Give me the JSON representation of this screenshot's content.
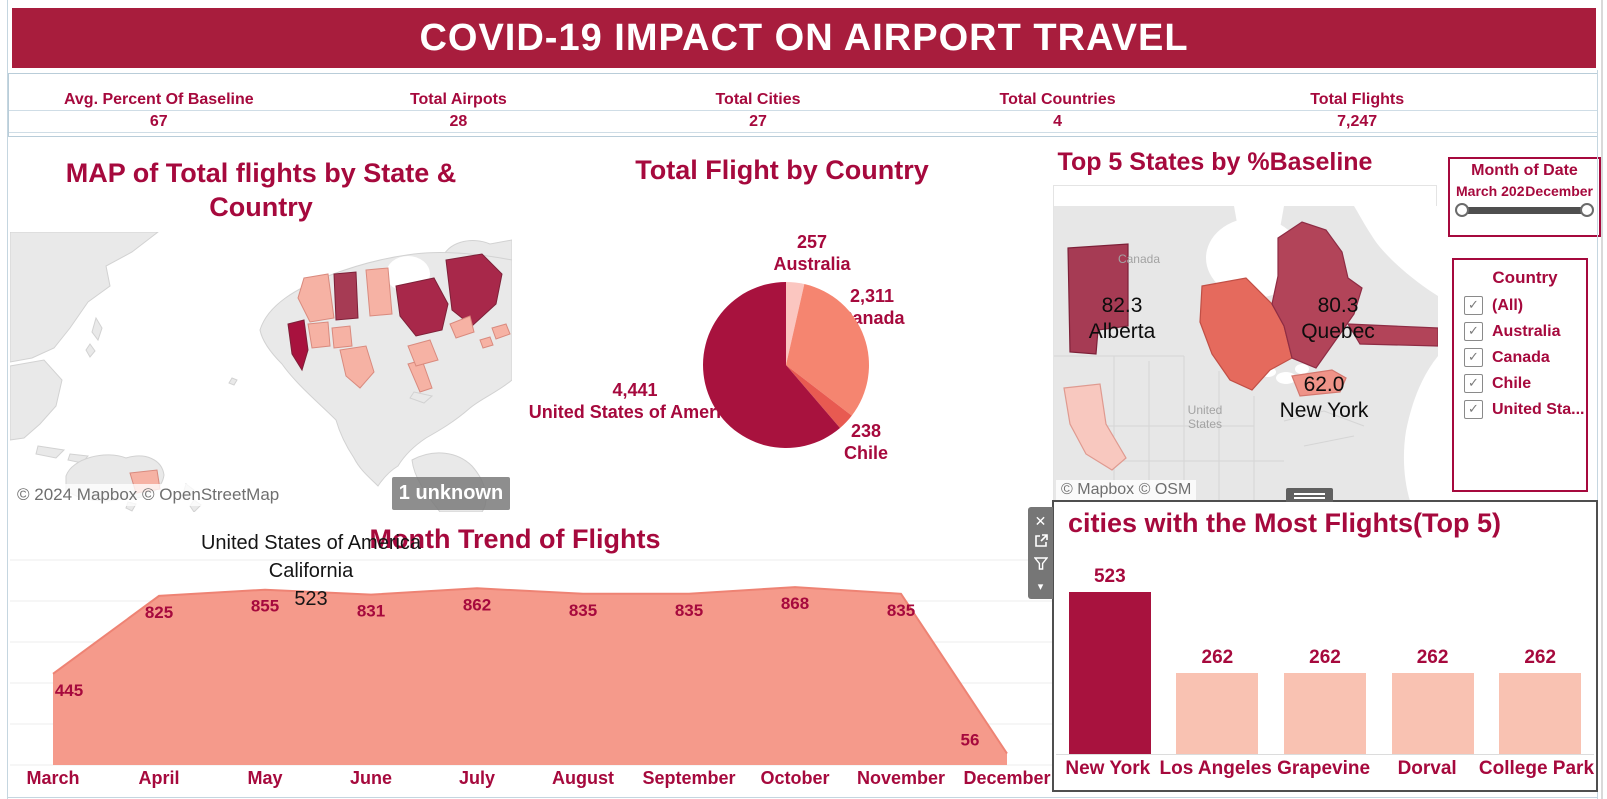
{
  "banner": {
    "title": "COVID-19 IMPACT ON AIRPORT TRAVEL",
    "bg_color": "#a81d3d"
  },
  "kpis": [
    {
      "label": "Avg. Percent Of Baseline",
      "value": "67"
    },
    {
      "label": "Total Airpots",
      "value": "28"
    },
    {
      "label": "Total Cities",
      "value": "27"
    },
    {
      "label": "Total Countries",
      "value": "4"
    },
    {
      "label": "Total Flights",
      "value": "7,247"
    }
  ],
  "left_map": {
    "title": "MAP of Total flights by State & Country",
    "annotation": [
      "United States of America",
      "California",
      "523"
    ],
    "attribution": "© 2024 Mapbox © OpenStreetMap",
    "badge": "1 unknown"
  },
  "top5_map": {
    "title": "Top 5 States by %Baseline",
    "labels": [
      {
        "value": "82.3",
        "name": "Alberta"
      },
      {
        "value": "80.3",
        "name": "Quebec"
      },
      {
        "value": "62.0",
        "name": "New York"
      }
    ],
    "basemap_labels": {
      "canada": "Canada",
      "us_line1": "United",
      "us_line2": "States"
    },
    "attribution": "© Mapbox © OSM"
  },
  "month_filter": {
    "title": "Month of Date",
    "start_label": "March 202",
    "end_label": "December"
  },
  "country_filter": {
    "title": "Country",
    "check_glyph": "✓",
    "options": [
      {
        "label": "(All)",
        "checked": true
      },
      {
        "label": "Australia",
        "checked": true
      },
      {
        "label": "Canada",
        "checked": true
      },
      {
        "label": "Chile",
        "checked": true
      },
      {
        "label": "United Sta...",
        "checked": true
      }
    ]
  },
  "panel_toolbar": {
    "close_glyph": "✕",
    "caret_glyph": "▾"
  },
  "colors": {
    "accent_crimson": "#a6093d",
    "banner": "#a81d3d",
    "dark_slice": "#a8123e",
    "canada_salmon": "#f58570",
    "australia_pink": "#fbc6c0",
    "chile_red": "#e85a51",
    "area_fill": "#f59a8b",
    "area_stroke": "#ee8374",
    "light_bar": "#f9c2b2",
    "gridline": "#ececec",
    "map_land": "#e9e9e9"
  },
  "chart_data": [
    {
      "type": "pie",
      "title": "Total Flight by Country",
      "slices": [
        {
          "name": "Australia",
          "value": 257,
          "label": "257",
          "color": "#fbc6c0"
        },
        {
          "name": "Canada",
          "value": 2311,
          "label": "2,311",
          "color": "#f58570"
        },
        {
          "name": "Chile",
          "value": 238,
          "label": "238",
          "color": "#e85a51"
        },
        {
          "name": "United States of America",
          "value": 4441,
          "label": "4,441",
          "color": "#a8123e"
        }
      ],
      "start_angle": "12 o'clock",
      "direction": "clockwise",
      "legend_position": "data labels around pie"
    },
    {
      "type": "area",
      "title": "Month Trend of Flights",
      "categories": [
        "March",
        "April",
        "May",
        "June",
        "July",
        "August",
        "September",
        "October",
        "November",
        "December"
      ],
      "values": [
        445,
        825,
        855,
        831,
        862,
        835,
        835,
        868,
        835,
        56
      ],
      "value_labels": [
        "445",
        "825",
        "855",
        "831",
        "862",
        "835",
        "835",
        "868",
        "835",
        "56"
      ],
      "xlabel": "",
      "ylabel": "",
      "ylim": [
        0,
        1000
      ],
      "grid": true
    },
    {
      "type": "bar",
      "title": "cities with the Most Flights(Top 5)",
      "categories": [
        "New York",
        "Los Angeles",
        "Grapevine",
        "Dorval",
        "College Park"
      ],
      "values": [
        523,
        262,
        262,
        262,
        262
      ],
      "value_labels": [
        "523",
        "262",
        "262",
        "262",
        "262"
      ],
      "bar_colors": [
        "#a8123e",
        "#f9c2b2",
        "#f9c2b2",
        "#f9c2b2",
        "#f9c2b2"
      ],
      "ylim": [
        0,
        560
      ],
      "grid": false
    }
  ]
}
